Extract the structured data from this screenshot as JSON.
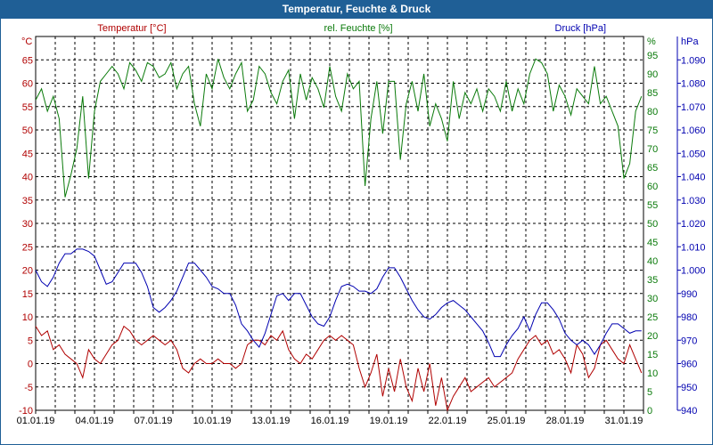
{
  "window": {
    "title": "Temperatur, Feuchte & Druck"
  },
  "chart_data": {
    "type": "line",
    "x_tick_labels": [
      "01.01.19",
      "04.01.19",
      "07.01.19",
      "10.01.19",
      "13.01.19",
      "16.01.19",
      "19.01.19",
      "22.01.19",
      "25.01.19",
      "28.01.19",
      "31.01.19"
    ],
    "xlim_days": [
      1,
      32
    ],
    "grid": true,
    "axes": {
      "temperature": {
        "unit": "°C",
        "ticks": [
          -10,
          -5,
          0,
          5,
          10,
          15,
          20,
          25,
          30,
          35,
          40,
          45,
          50,
          55,
          60,
          65
        ],
        "ylim": [
          -10,
          70
        ],
        "color": "#b00000"
      },
      "humidity": {
        "unit": "%",
        "ticks": [
          0,
          5,
          10,
          15,
          20,
          25,
          30,
          35,
          40,
          45,
          50,
          55,
          60,
          65,
          70,
          75,
          80,
          85,
          90,
          95
        ],
        "ylim": [
          0,
          100
        ],
        "color": "#0a7a0a"
      },
      "pressure": {
        "unit": "hPa",
        "tick_labels": [
          "940",
          "950",
          "960",
          "970",
          "980",
          "990",
          "1.000",
          "1.010",
          "1.020",
          "1.030",
          "1.040",
          "1.050",
          "1.060",
          "1.070",
          "1.080",
          "1.090"
        ],
        "ticks": [
          940,
          950,
          960,
          970,
          980,
          990,
          1000,
          1010,
          1020,
          1030,
          1040,
          1050,
          1060,
          1070,
          1080,
          1090
        ],
        "ylim": [
          940,
          1100
        ],
        "color": "#0000b0"
      }
    },
    "series": [
      {
        "name": "Temperatur [°C]",
        "axis": "temperature",
        "color": "#b00000",
        "x": [
          1.0,
          1.3,
          1.6,
          1.9,
          2.2,
          2.5,
          2.8,
          3.1,
          3.4,
          3.7,
          4.0,
          4.3,
          4.6,
          4.9,
          5.2,
          5.5,
          5.8,
          6.1,
          6.4,
          6.7,
          7.0,
          7.3,
          7.6,
          7.9,
          8.2,
          8.5,
          8.8,
          9.1,
          9.4,
          9.7,
          10.0,
          10.3,
          10.6,
          10.9,
          11.2,
          11.5,
          11.8,
          12.1,
          12.4,
          12.7,
          13.0,
          13.3,
          13.6,
          13.9,
          14.2,
          14.5,
          14.8,
          15.1,
          15.4,
          15.7,
          16.0,
          16.3,
          16.6,
          16.9,
          17.2,
          17.5,
          17.8,
          18.1,
          18.4,
          18.7,
          19.0,
          19.3,
          19.6,
          19.9,
          20.2,
          20.5,
          20.8,
          21.1,
          21.4,
          21.7,
          22.0,
          22.3,
          22.6,
          22.9,
          23.2,
          23.5,
          23.8,
          24.1,
          24.4,
          24.7,
          25.0,
          25.3,
          25.6,
          25.9,
          26.2,
          26.5,
          26.8,
          27.1,
          27.4,
          27.7,
          28.0,
          28.3,
          28.6,
          28.9,
          29.2,
          29.5,
          29.8,
          30.1,
          30.4,
          30.7,
          31.0,
          31.3,
          31.6,
          31.9
        ],
        "values": [
          8,
          6,
          7,
          3,
          4,
          2,
          1,
          0,
          -3,
          3,
          1,
          0,
          2,
          4,
          5,
          8,
          7,
          5,
          4,
          5,
          6,
          5,
          4,
          5,
          3,
          -1,
          -2,
          0,
          1,
          0,
          0,
          1,
          0,
          0,
          -1,
          0,
          4,
          5,
          5,
          4,
          6,
          5,
          7,
          3,
          1,
          0,
          2,
          1,
          3,
          5,
          6,
          5,
          6,
          5,
          4,
          -1,
          -5,
          -2,
          2,
          -7,
          -1,
          -6,
          1,
          -5,
          -8,
          -1,
          -6,
          0,
          -9,
          -3,
          -10,
          -7,
          -5,
          -3,
          -6,
          -5,
          -4,
          -3,
          -5,
          -4,
          -3,
          -2,
          1,
          3,
          5,
          6,
          4,
          5,
          2,
          3,
          1,
          -2,
          4,
          2,
          -3,
          -1,
          4,
          5,
          3,
          1,
          0,
          4,
          1,
          -2
        ]
      },
      {
        "name": "rel. Feuchte [%]",
        "axis": "humidity",
        "color": "#0a7a0a",
        "x": [
          1.0,
          1.3,
          1.6,
          1.9,
          2.2,
          2.5,
          2.8,
          3.1,
          3.4,
          3.7,
          4.0,
          4.3,
          4.6,
          4.9,
          5.2,
          5.5,
          5.8,
          6.1,
          6.4,
          6.7,
          7.0,
          7.3,
          7.6,
          7.9,
          8.2,
          8.5,
          8.8,
          9.1,
          9.4,
          9.7,
          10.0,
          10.3,
          10.6,
          10.9,
          11.2,
          11.5,
          11.8,
          12.1,
          12.4,
          12.7,
          13.0,
          13.3,
          13.6,
          13.9,
          14.2,
          14.5,
          14.8,
          15.1,
          15.4,
          15.7,
          16.0,
          16.3,
          16.6,
          16.9,
          17.2,
          17.5,
          17.8,
          18.1,
          18.4,
          18.7,
          19.0,
          19.3,
          19.6,
          19.9,
          20.2,
          20.5,
          20.8,
          21.1,
          21.4,
          21.7,
          22.0,
          22.3,
          22.6,
          22.9,
          23.2,
          23.5,
          23.8,
          24.1,
          24.4,
          24.7,
          25.0,
          25.3,
          25.6,
          25.9,
          26.2,
          26.5,
          26.8,
          27.1,
          27.4,
          27.7,
          28.0,
          28.3,
          28.6,
          28.9,
          29.2,
          29.5,
          29.8,
          30.1,
          30.4,
          30.7,
          31.0,
          31.3,
          31.6,
          31.9
        ],
        "values": [
          83,
          86,
          80,
          84,
          78,
          57,
          63,
          70,
          84,
          62,
          80,
          88,
          90,
          92,
          90,
          86,
          93,
          91,
          88,
          93,
          92,
          89,
          90,
          93,
          86,
          90,
          92,
          82,
          76,
          90,
          86,
          94,
          89,
          86,
          90,
          93,
          80,
          83,
          92,
          90,
          85,
          82,
          88,
          91,
          78,
          90,
          83,
          89,
          86,
          81,
          92,
          84,
          80,
          90,
          86,
          88,
          60,
          78,
          88,
          74,
          88,
          88,
          67,
          82,
          88,
          80,
          90,
          76,
          82,
          78,
          72,
          88,
          78,
          85,
          82,
          86,
          80,
          86,
          84,
          80,
          88,
          80,
          86,
          82,
          90,
          94,
          93,
          90,
          80,
          87,
          84,
          79,
          86,
          84,
          82,
          92,
          82,
          84,
          80,
          76,
          62,
          66,
          80,
          84
        ]
      },
      {
        "name": "Druck [hPa]",
        "axis": "pressure",
        "color": "#0000b0",
        "x": [
          1.0,
          1.3,
          1.6,
          1.9,
          2.2,
          2.5,
          2.8,
          3.1,
          3.4,
          3.7,
          4.0,
          4.3,
          4.6,
          4.9,
          5.2,
          5.5,
          5.8,
          6.1,
          6.4,
          6.7,
          7.0,
          7.3,
          7.6,
          7.9,
          8.2,
          8.5,
          8.8,
          9.1,
          9.4,
          9.7,
          10.0,
          10.3,
          10.6,
          10.9,
          11.2,
          11.5,
          11.8,
          12.1,
          12.4,
          12.7,
          13.0,
          13.3,
          13.6,
          13.9,
          14.2,
          14.5,
          14.8,
          15.1,
          15.4,
          15.7,
          16.0,
          16.3,
          16.6,
          16.9,
          17.2,
          17.5,
          17.8,
          18.1,
          18.4,
          18.7,
          19.0,
          19.3,
          19.6,
          19.9,
          20.2,
          20.5,
          20.8,
          21.1,
          21.4,
          21.7,
          22.0,
          22.3,
          22.6,
          22.9,
          23.2,
          23.5,
          23.8,
          24.1,
          24.4,
          24.7,
          25.0,
          25.3,
          25.6,
          25.9,
          26.2,
          26.5,
          26.8,
          27.1,
          27.4,
          27.7,
          28.0,
          28.3,
          28.6,
          28.9,
          29.2,
          29.5,
          29.8,
          30.1,
          30.4,
          30.7,
          31.0,
          31.3,
          31.6,
          31.9
        ],
        "values": [
          1000,
          995,
          993,
          997,
          1003,
          1007,
          1007,
          1009,
          1009,
          1008,
          1006,
          1000,
          994,
          995,
          999,
          1003,
          1003,
          1003,
          999,
          993,
          984,
          982,
          984,
          987,
          991,
          997,
          1003,
          1003,
          1000,
          997,
          993,
          992,
          990,
          990,
          985,
          977,
          974,
          970,
          967,
          973,
          981,
          989,
          990,
          987,
          990,
          990,
          985,
          980,
          977,
          976,
          980,
          987,
          993,
          994,
          993,
          991,
          991,
          990,
          992,
          997,
          1001,
          1001,
          997,
          992,
          987,
          983,
          980,
          979,
          981,
          984,
          986,
          987,
          985,
          983,
          980,
          977,
          974,
          969,
          963,
          963,
          968,
          972,
          975,
          980,
          974,
          981,
          986,
          986,
          983,
          979,
          973,
          970,
          968,
          970,
          968,
          964,
          968,
          973,
          977,
          977,
          975,
          973,
          974,
          974
        ]
      }
    ]
  }
}
